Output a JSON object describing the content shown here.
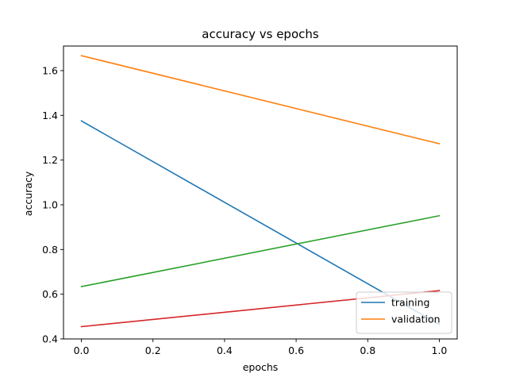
{
  "chart_data": {
    "type": "line",
    "title": "accuracy vs epochs",
    "xlabel": "epochs",
    "ylabel": "accuracy",
    "xlim": [
      -0.05,
      1.05
    ],
    "ylim": [
      0.4,
      1.71
    ],
    "xticks": [
      0.0,
      0.2,
      0.4,
      0.6,
      0.8,
      1.0
    ],
    "xtick_labels": [
      "0.0",
      "0.2",
      "0.4",
      "0.6",
      "0.8",
      "1.0"
    ],
    "yticks": [
      0.4,
      0.6,
      0.8,
      1.0,
      1.2,
      1.4,
      1.6
    ],
    "ytick_labels": [
      "0.4",
      "0.6",
      "0.8",
      "1.0",
      "1.2",
      "1.4",
      "1.6"
    ],
    "grid": false,
    "legend_position": "lower-right",
    "series": [
      {
        "name": "training",
        "color": "#1f77b4",
        "x": [
          0,
          1
        ],
        "y": [
          1.375,
          0.465
        ],
        "in_legend": true
      },
      {
        "name": "validation",
        "color": "#ff7f0e",
        "x": [
          0,
          1
        ],
        "y": [
          1.667,
          1.273
        ],
        "in_legend": true
      },
      {
        "color": "#2ca02c",
        "x": [
          0,
          1
        ],
        "y": [
          0.634,
          0.951
        ],
        "in_legend": false
      },
      {
        "color": "#d62728",
        "x": [
          0,
          1
        ],
        "y": [
          0.455,
          0.616
        ],
        "in_legend": false
      }
    ]
  }
}
